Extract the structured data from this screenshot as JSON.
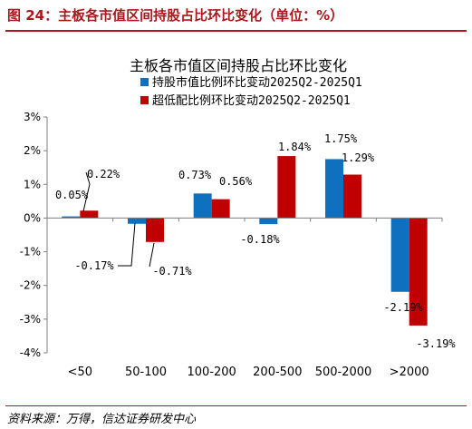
{
  "figure": {
    "title": "图 24：主板各市值区间持股占比环比变化（单位：%）",
    "source": "资料来源：万得，信达证券研发中心"
  },
  "colors": {
    "series1": "#0f70c0",
    "series2": "#c00000",
    "accent": "#a8181d"
  },
  "chart_data": {
    "type": "bar",
    "title": "主板各市值区间持股占比环比变化",
    "categories": [
      "<50",
      "50-100",
      "100-200",
      "200-500",
      "500-2000",
      ">2000"
    ],
    "series": [
      {
        "name": "持股市值比例环比变动2025Q2-2025Q1",
        "values": [
          0.05,
          -0.17,
          0.73,
          -0.18,
          1.75,
          -2.19
        ],
        "labels": [
          "0.05%",
          "-0.17%",
          "0.73%",
          "-0.18%",
          "1.75%",
          "-2.19%"
        ]
      },
      {
        "name": "超低配比例环比变动2025Q2-2025Q1",
        "values": [
          0.22,
          -0.71,
          0.56,
          1.84,
          1.29,
          -3.19
        ],
        "labels": [
          "0.22%",
          "-0.71%",
          "0.56%",
          "1.84%",
          "1.29%",
          "-3.19%"
        ]
      }
    ],
    "ylim": [
      -4,
      3
    ],
    "yticks": [
      -4,
      -3,
      -2,
      -1,
      0,
      1,
      2,
      3
    ],
    "ytick_labels": [
      "-4%",
      "-3%",
      "-2%",
      "-1%",
      "0%",
      "1%",
      "2%",
      "3%"
    ],
    "xlabel": "",
    "ylabel": "",
    "legend_position": "top",
    "grid": false
  }
}
